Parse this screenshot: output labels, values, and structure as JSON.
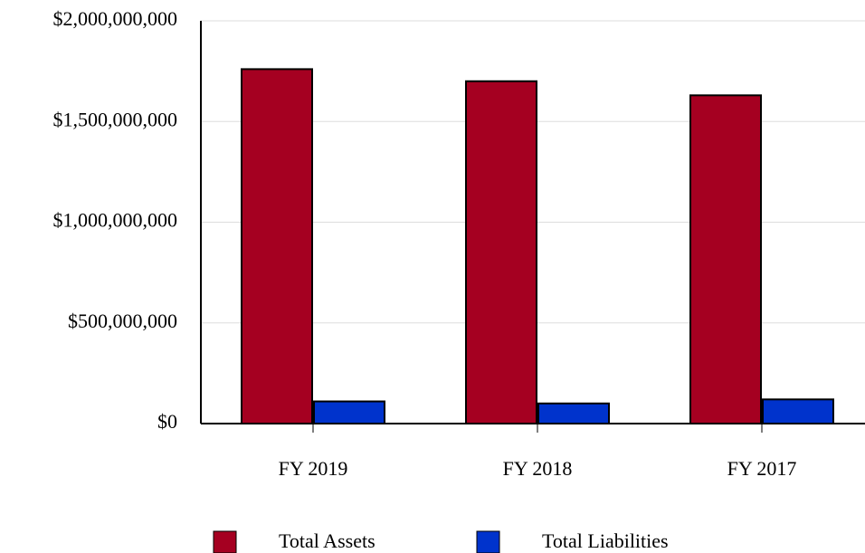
{
  "chart_data": {
    "type": "bar",
    "categories": [
      "FY 2019",
      "FY 2018",
      "FY 2017"
    ],
    "series": [
      {
        "name": "Total Assets",
        "color": "#a50021",
        "values": [
          1760000000,
          1700000000,
          1630000000
        ]
      },
      {
        "name": "Total Liabilities",
        "color": "#0033cc",
        "values": [
          110000000,
          100000000,
          120000000
        ]
      }
    ],
    "ylim": [
      0,
      2000000000
    ],
    "yticks": [
      {
        "value": 0,
        "label": "$0"
      },
      {
        "value": 500000000,
        "label": "$500,000,000"
      },
      {
        "value": 1000000000,
        "label": "$1,000,000,000"
      },
      {
        "value": 1500000000,
        "label": "$1,500,000,000"
      },
      {
        "value": 2000000000,
        "label": "$2,000,000,000"
      }
    ],
    "grid": true,
    "legend": "bottom"
  }
}
